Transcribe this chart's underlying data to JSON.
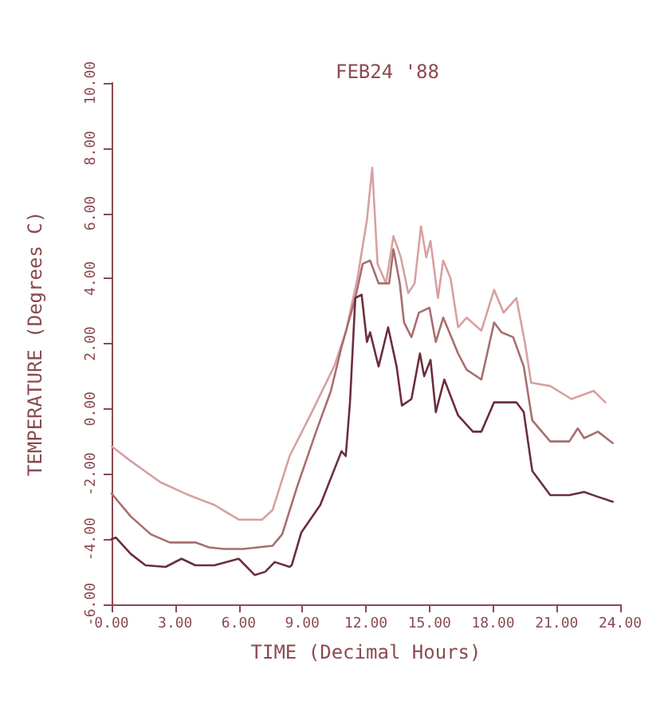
{
  "chart_data": {
    "type": "line",
    "title": "FEB24 '88",
    "xlabel": "TIME (Decimal Hours)",
    "ylabel": "TEMPERATURE (Degrees C)",
    "xlim": [
      0,
      24
    ],
    "xticks": [
      {
        "value": 0,
        "label": "0.00"
      },
      {
        "value": 3,
        "label": "3.00"
      },
      {
        "value": 6,
        "label": "6.00"
      },
      {
        "value": 9,
        "label": "9.00"
      },
      {
        "value": 12,
        "label": "12.00"
      },
      {
        "value": 15,
        "label": "15.00"
      },
      {
        "value": 18,
        "label": "18.00"
      },
      {
        "value": 21,
        "label": "21.00"
      },
      {
        "value": 24,
        "label": "24.00"
      }
    ],
    "ylim": [
      -6,
      10
    ],
    "yticks": [
      {
        "value": -6,
        "label": "-6.00"
      },
      {
        "value": -4,
        "label": "-4.00"
      },
      {
        "value": -2,
        "label": "-2.00"
      },
      {
        "value": 0,
        "label": "0.00"
      },
      {
        "value": 2,
        "label": "2.00"
      },
      {
        "value": 4,
        "label": "4.00"
      },
      {
        "value": 6,
        "label": "6.00"
      },
      {
        "value": 8,
        "label": "8.00"
      },
      {
        "value": 10,
        "label": "10.00"
      }
    ],
    "grid": false,
    "marker": "none",
    "line_style": "solid",
    "series": [
      {
        "color": "#d8a0a0",
        "x": [
          0,
          0.9,
          2.3,
          3.65,
          4.85,
          6.0,
          7.1,
          7.6,
          8.4,
          9.45,
          10.5,
          11.05,
          11.6,
          12.05,
          12.3,
          12.55,
          12.95,
          13.3,
          13.65,
          14.0,
          14.3,
          14.6,
          14.85,
          15.05,
          15.4,
          15.65,
          16.0,
          16.35,
          16.75,
          17.45,
          18.05,
          18.5,
          19.1,
          19.5,
          19.8,
          20.7,
          21.7,
          22.75,
          23.3
        ],
        "values": [
          -1.15,
          -1.6,
          -2.25,
          -2.65,
          -2.95,
          -3.4,
          -3.4,
          -3.1,
          -1.45,
          -0.1,
          1.3,
          2.35,
          4.0,
          5.8,
          7.4,
          4.45,
          3.85,
          5.3,
          4.65,
          3.55,
          3.85,
          5.6,
          4.65,
          5.15,
          3.4,
          4.55,
          4.0,
          2.5,
          2.8,
          2.4,
          3.65,
          2.95,
          3.4,
          2.05,
          0.8,
          0.7,
          0.3,
          0.55,
          0.2
        ]
      },
      {
        "color": "#a86e6e",
        "x": [
          0,
          0.9,
          1.85,
          2.75,
          3.95,
          4.6,
          5.3,
          6.2,
          7.6,
          8.05,
          8.75,
          9.65,
          10.35,
          10.85,
          11.5,
          11.85,
          12.2,
          12.6,
          13.1,
          13.3,
          13.6,
          13.8,
          14.15,
          14.5,
          15.0,
          15.3,
          15.65,
          16.35,
          16.75,
          17.45,
          18.05,
          18.4,
          18.95,
          19.45,
          19.85,
          20.7,
          21.6,
          22.0,
          22.3,
          22.95,
          23.65
        ],
        "values": [
          -2.6,
          -3.3,
          -3.85,
          -4.1,
          -4.1,
          -4.25,
          -4.3,
          -4.3,
          -4.2,
          -3.85,
          -2.4,
          -0.7,
          0.55,
          1.9,
          3.4,
          4.45,
          4.55,
          3.85,
          3.85,
          4.9,
          3.85,
          2.65,
          2.2,
          2.95,
          3.1,
          2.05,
          2.8,
          1.7,
          1.2,
          0.9,
          2.65,
          2.35,
          2.2,
          1.3,
          -0.35,
          -1.0,
          -1.0,
          -0.6,
          -0.9,
          -0.7,
          -1.05
        ]
      },
      {
        "color": "#6b2e3c",
        "x": [
          0,
          0.2,
          0.9,
          1.6,
          2.55,
          3.3,
          3.95,
          4.85,
          6.0,
          6.75,
          7.25,
          7.7,
          8.4,
          8.5,
          8.95,
          9.85,
          10.85,
          11.05,
          11.25,
          11.5,
          11.8,
          12.05,
          12.2,
          12.6,
          13.05,
          13.45,
          13.7,
          14.15,
          14.55,
          14.75,
          15.05,
          15.3,
          15.7,
          16.35,
          17.05,
          17.45,
          18.05,
          19.1,
          19.45,
          19.85,
          20.7,
          21.6,
          22.3,
          22.95,
          23.65
        ],
        "values": [
          -4.0,
          -3.95,
          -4.45,
          -4.8,
          -4.85,
          -4.6,
          -4.8,
          -4.8,
          -4.6,
          -5.1,
          -5.0,
          -4.7,
          -4.85,
          -4.8,
          -3.8,
          -2.95,
          -1.3,
          -1.45,
          0.2,
          3.4,
          3.5,
          2.05,
          2.35,
          1.3,
          2.5,
          1.3,
          0.1,
          0.3,
          1.7,
          1.0,
          1.5,
          -0.1,
          0.9,
          -0.2,
          -0.7,
          -0.7,
          0.2,
          0.2,
          -0.1,
          -1.9,
          -2.65,
          -2.65,
          -2.55,
          -2.7,
          -2.85
        ]
      }
    ]
  }
}
